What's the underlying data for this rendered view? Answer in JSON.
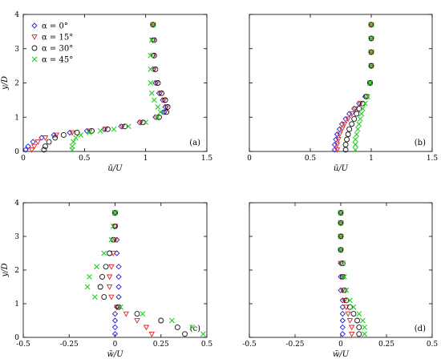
{
  "legend": {
    "entries": [
      {
        "label": "α = 0°",
        "color": "#1f1fd6",
        "marker": "diamond"
      },
      {
        "label": "α = 15°",
        "color": "#e0231e",
        "marker": "triangle-down"
      },
      {
        "label": "α = 30°",
        "color": "#111111",
        "marker": "circle"
      },
      {
        "label": "α = 45°",
        "color": "#1fcf1f",
        "marker": "cross"
      }
    ]
  },
  "chart_data": [
    {
      "type": "scatter",
      "panel_label": "(a)",
      "xlabel": "ū/U",
      "ylabel": "y/D",
      "xlim": [
        0,
        1.5
      ],
      "ylim": [
        0,
        4
      ],
      "xticks": [
        "0",
        "0.5",
        "1",
        "1.5"
      ],
      "yticks": [
        "0",
        "1",
        "2",
        "3",
        "4"
      ],
      "series": [
        {
          "name": "α = 0°",
          "x": [
            0.02,
            0.04,
            0.08,
            0.15,
            0.25,
            0.38,
            0.52,
            0.66,
            0.8,
            0.95,
            1.08,
            1.15,
            1.16,
            1.14,
            1.11,
            1.08,
            1.06,
            1.06,
            1.06,
            1.06
          ],
          "y": [
            0.05,
            0.15,
            0.28,
            0.4,
            0.48,
            0.55,
            0.6,
            0.65,
            0.73,
            0.85,
            1.0,
            1.15,
            1.3,
            1.5,
            1.7,
            2.0,
            2.4,
            2.8,
            3.25,
            3.7
          ]
        },
        {
          "name": "α = 15°",
          "x": [
            0.07,
            0.09,
            0.12,
            0.18,
            0.27,
            0.4,
            0.54,
            0.67,
            0.81,
            0.96,
            1.09,
            1.16,
            1.17,
            1.15,
            1.12,
            1.09,
            1.07,
            1.06,
            1.06,
            1.06
          ],
          "y": [
            0.05,
            0.15,
            0.28,
            0.4,
            0.48,
            0.55,
            0.6,
            0.65,
            0.73,
            0.85,
            1.0,
            1.15,
            1.3,
            1.5,
            1.7,
            2.0,
            2.4,
            2.8,
            3.25,
            3.7
          ]
        },
        {
          "name": "α = 30°",
          "x": [
            0.17,
            0.18,
            0.21,
            0.26,
            0.33,
            0.44,
            0.56,
            0.69,
            0.83,
            0.98,
            1.11,
            1.17,
            1.18,
            1.16,
            1.13,
            1.1,
            1.08,
            1.07,
            1.07,
            1.06
          ],
          "y": [
            0.05,
            0.15,
            0.28,
            0.4,
            0.48,
            0.55,
            0.6,
            0.65,
            0.73,
            0.85,
            1.0,
            1.15,
            1.3,
            1.5,
            1.7,
            2.0,
            2.4,
            2.8,
            3.25,
            3.7
          ]
        },
        {
          "name": "α = 45°",
          "x": [
            0.4,
            0.4,
            0.41,
            0.43,
            0.47,
            0.54,
            0.63,
            0.74,
            0.86,
            1.0,
            1.1,
            1.12,
            1.1,
            1.07,
            1.05,
            1.04,
            1.04,
            1.04,
            1.05,
            1.06
          ],
          "y": [
            0.05,
            0.15,
            0.28,
            0.4,
            0.48,
            0.55,
            0.6,
            0.65,
            0.73,
            0.85,
            1.0,
            1.15,
            1.3,
            1.5,
            1.7,
            2.0,
            2.4,
            2.8,
            3.25,
            3.7
          ]
        }
      ]
    },
    {
      "type": "scatter",
      "panel_label": "(b)",
      "xlabel": "ū/U",
      "ylabel": "",
      "xlim": [
        0,
        1.5
      ],
      "ylim": [
        0,
        4
      ],
      "xticks": [
        "0",
        "0.5",
        "1",
        "1.5"
      ],
      "yticks": [],
      "series": [
        {
          "name": "α = 0°",
          "x": [
            0.7,
            0.7,
            0.71,
            0.72,
            0.74,
            0.76,
            0.79,
            0.82,
            0.86,
            0.9,
            0.95,
            0.99,
            1.0,
            1.0,
            1.0,
            1.0
          ],
          "y": [
            0.05,
            0.2,
            0.35,
            0.5,
            0.65,
            0.8,
            0.95,
            1.1,
            1.25,
            1.4,
            1.6,
            2.0,
            2.5,
            2.9,
            3.3,
            3.7
          ]
        },
        {
          "name": "α = 15°",
          "x": [
            0.72,
            0.72,
            0.73,
            0.74,
            0.76,
            0.78,
            0.81,
            0.84,
            0.87,
            0.91,
            0.96,
            0.99,
            1.0,
            1.0,
            1.0,
            1.0
          ],
          "y": [
            0.05,
            0.2,
            0.35,
            0.5,
            0.65,
            0.8,
            0.95,
            1.1,
            1.25,
            1.4,
            1.6,
            2.0,
            2.5,
            2.9,
            3.3,
            3.7
          ]
        },
        {
          "name": "α = 30°",
          "x": [
            0.79,
            0.79,
            0.8,
            0.81,
            0.82,
            0.84,
            0.86,
            0.88,
            0.9,
            0.93,
            0.96,
            0.99,
            1.0,
            1.0,
            1.0,
            1.0
          ],
          "y": [
            0.05,
            0.2,
            0.35,
            0.5,
            0.65,
            0.8,
            0.95,
            1.1,
            1.25,
            1.4,
            1.6,
            2.0,
            2.5,
            2.9,
            3.3,
            3.7
          ]
        },
        {
          "name": "α = 45°",
          "x": [
            0.87,
            0.87,
            0.87,
            0.88,
            0.89,
            0.9,
            0.91,
            0.92,
            0.93,
            0.95,
            0.97,
            0.99,
            1.0,
            1.0,
            1.0,
            1.0
          ],
          "y": [
            0.05,
            0.2,
            0.35,
            0.5,
            0.65,
            0.8,
            0.95,
            1.1,
            1.25,
            1.4,
            1.6,
            2.0,
            2.5,
            2.9,
            3.3,
            3.7
          ]
        }
      ]
    },
    {
      "type": "scatter",
      "panel_label": "(c)",
      "xlabel": "w̄/U",
      "ylabel": "y/D",
      "xlim": [
        -0.5,
        0.5
      ],
      "ylim": [
        0,
        4
      ],
      "xticks": [
        "-0.5",
        "-0.25",
        "0",
        "0.25",
        "0.5"
      ],
      "yticks": [
        "0",
        "1",
        "2",
        "3",
        "4"
      ],
      "series": [
        {
          "name": "α = 0°",
          "x": [
            0.0,
            0.0,
            0.0,
            0.0,
            0.01,
            0.02,
            0.02,
            0.02,
            0.02,
            0.01,
            0.01,
            0.0,
            0.0
          ],
          "y": [
            0.1,
            0.3,
            0.5,
            0.7,
            0.9,
            1.2,
            1.5,
            1.8,
            2.1,
            2.5,
            2.9,
            3.3,
            3.7
          ]
        },
        {
          "name": "α = 15°",
          "x": [
            0.2,
            0.17,
            0.12,
            0.06,
            0.01,
            -0.02,
            -0.03,
            -0.03,
            -0.02,
            -0.01,
            0.0,
            0.0,
            0.0
          ],
          "y": [
            0.1,
            0.3,
            0.5,
            0.7,
            0.9,
            1.2,
            1.5,
            1.8,
            2.1,
            2.5,
            2.9,
            3.3,
            3.7
          ]
        },
        {
          "name": "α = 30°",
          "x": [
            0.38,
            0.34,
            0.25,
            0.12,
            0.02,
            -0.06,
            -0.08,
            -0.07,
            -0.05,
            -0.03,
            -0.01,
            0.0,
            0.0
          ],
          "y": [
            0.1,
            0.3,
            0.5,
            0.7,
            0.9,
            1.2,
            1.5,
            1.8,
            2.1,
            2.5,
            2.9,
            3.3,
            3.7
          ]
        },
        {
          "name": "α = 45°",
          "x": [
            0.48,
            0.42,
            0.31,
            0.15,
            0.03,
            -0.11,
            -0.15,
            -0.14,
            -0.1,
            -0.06,
            -0.02,
            -0.01,
            0.0
          ],
          "y": [
            0.1,
            0.3,
            0.5,
            0.7,
            0.9,
            1.2,
            1.5,
            1.8,
            2.1,
            2.5,
            2.9,
            3.3,
            3.7
          ]
        }
      ]
    },
    {
      "type": "scatter",
      "panel_label": "(d)",
      "xlabel": "w̄/U",
      "ylabel": "",
      "xlim": [
        -0.5,
        0.5
      ],
      "ylim": [
        0,
        4
      ],
      "xticks": [
        "-0.5",
        "-0.25",
        "0",
        "0.25",
        "0.5"
      ],
      "yticks": [],
      "series": [
        {
          "name": "α = 0°",
          "x": [
            0.01,
            0.01,
            0.01,
            0.01,
            0.01,
            0.01,
            0.0,
            0.0,
            0.0,
            0.0,
            0.0,
            0.0,
            0.0
          ],
          "y": [
            0.1,
            0.3,
            0.5,
            0.7,
            0.9,
            1.1,
            1.4,
            1.8,
            2.2,
            2.6,
            3.0,
            3.4,
            3.7
          ]
        },
        {
          "name": "α = 15°",
          "x": [
            0.06,
            0.06,
            0.05,
            0.04,
            0.03,
            0.02,
            0.01,
            0.01,
            0.0,
            0.0,
            0.0,
            0.0,
            0.0
          ],
          "y": [
            0.1,
            0.3,
            0.5,
            0.7,
            0.9,
            1.1,
            1.4,
            1.8,
            2.2,
            2.6,
            3.0,
            3.4,
            3.7
          ]
        },
        {
          "name": "α = 30°",
          "x": [
            0.1,
            0.1,
            0.09,
            0.07,
            0.05,
            0.03,
            0.02,
            0.01,
            0.01,
            0.0,
            0.0,
            0.0,
            0.0
          ],
          "y": [
            0.1,
            0.3,
            0.5,
            0.7,
            0.9,
            1.1,
            1.4,
            1.8,
            2.2,
            2.6,
            3.0,
            3.4,
            3.7
          ]
        },
        {
          "name": "α = 45°",
          "x": [
            0.13,
            0.13,
            0.12,
            0.1,
            0.07,
            0.05,
            0.03,
            0.02,
            0.01,
            0.0,
            0.0,
            0.0,
            0.0
          ],
          "y": [
            0.1,
            0.3,
            0.5,
            0.7,
            0.9,
            1.1,
            1.4,
            1.8,
            2.2,
            2.6,
            3.0,
            3.4,
            3.7
          ]
        }
      ]
    }
  ]
}
